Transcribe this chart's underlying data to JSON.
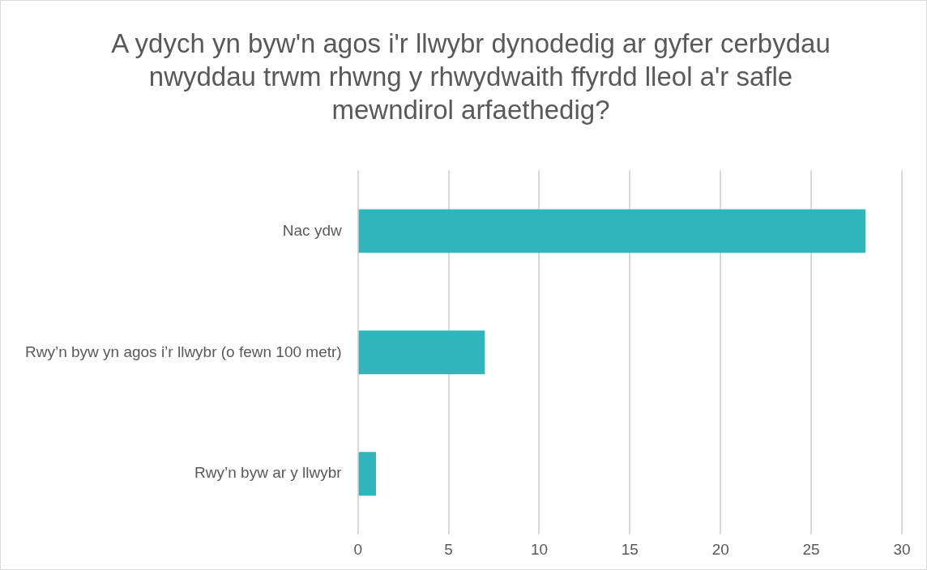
{
  "chart_data": {
    "type": "bar",
    "orientation": "horizontal",
    "title": "A ydych yn byw'n agos i'r llwybr dynodedig ar gyfer cerbydau nwyddau trwm rhwng y rhwydwaith ffyrdd lleol a'r safle mewndirol arfaethedig?",
    "categories": [
      "Nac ydw",
      "Rwy’n byw yn agos i’r llwybr (o fewn 100 metr)",
      "Rwy’n byw ar y llwybr"
    ],
    "values": [
      28,
      7,
      1
    ],
    "color": "#2fb5bc",
    "xlim": [
      0,
      30
    ],
    "xticks": [
      0,
      5,
      10,
      15,
      20,
      25,
      30
    ],
    "grid": "x"
  }
}
